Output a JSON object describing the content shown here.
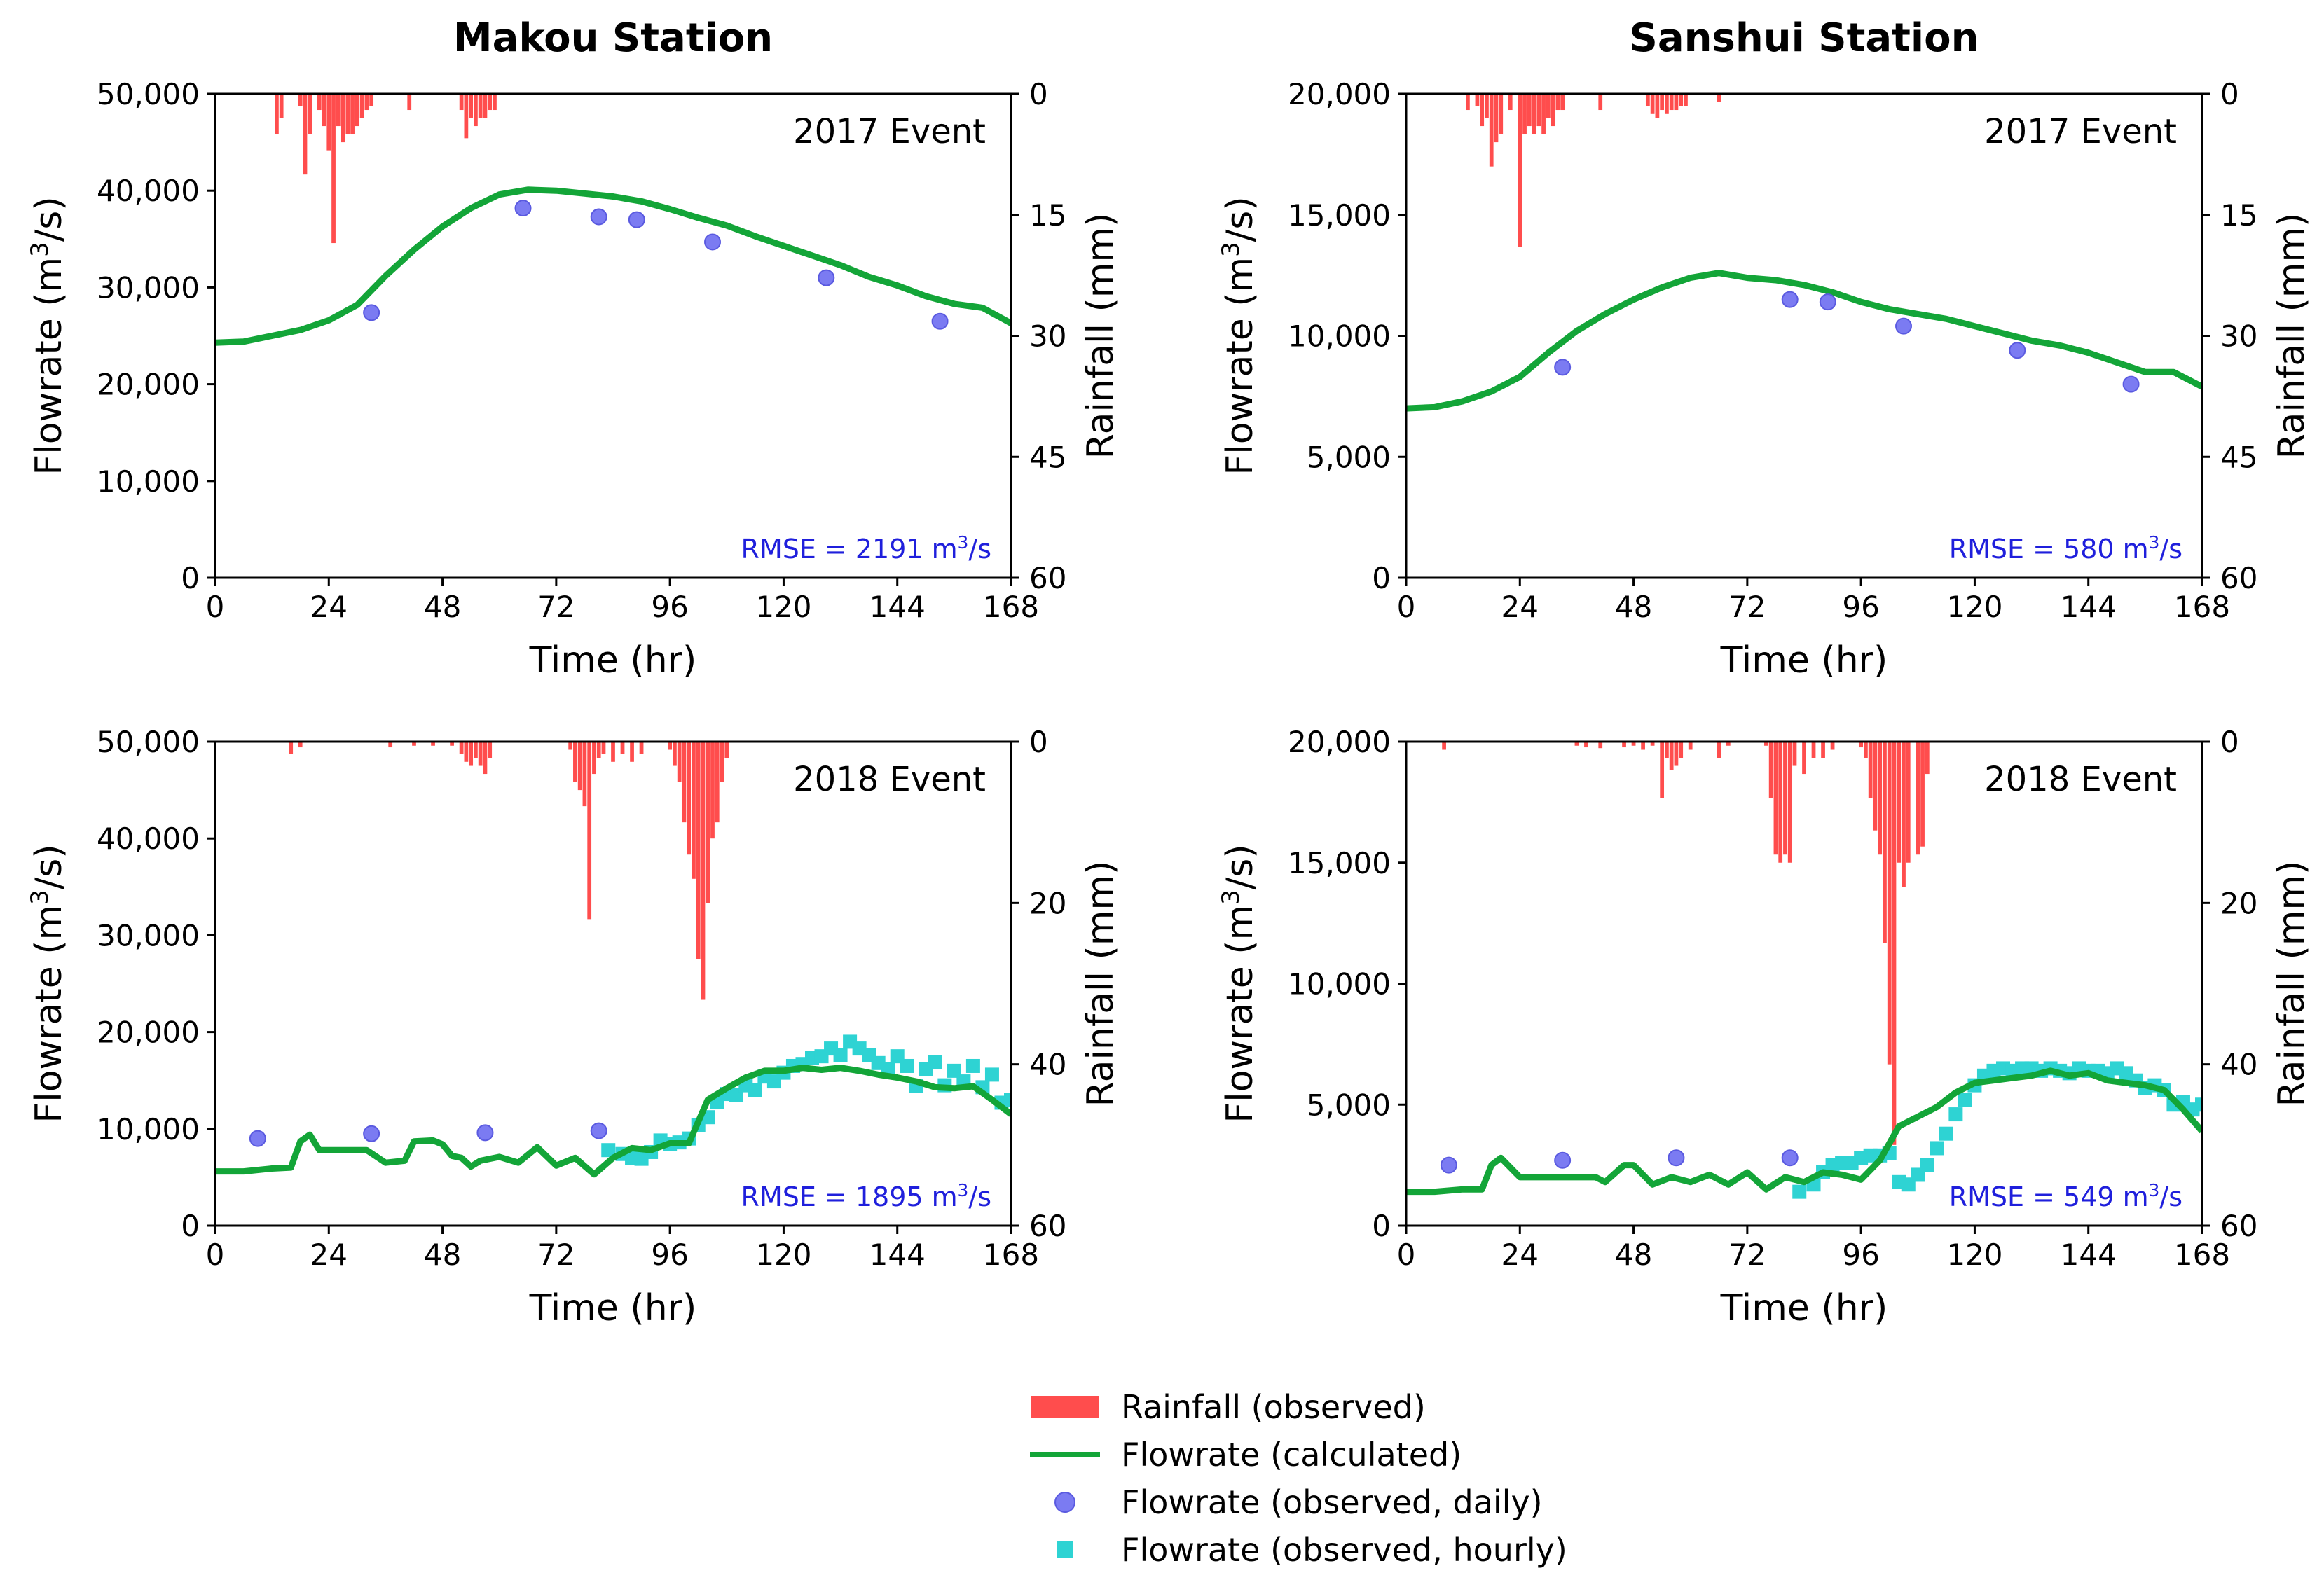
{
  "titles": {
    "left": "Makou Station",
    "right": "Sanshui Station"
  },
  "colors": {
    "rain": "#ff4d4d",
    "flow_calc": "#13a538",
    "daily": "#7b7bf2",
    "daily_edge": "#5a5ae0",
    "hourly": "#2ed3d3",
    "rmse": "#1f1fdc"
  },
  "legend": [
    {
      "label": "Rainfall (observed)",
      "marker": "bar",
      "color": "#ff4d4d"
    },
    {
      "label": "Flowrate (calculated)",
      "marker": "line",
      "color": "#13a538"
    },
    {
      "label": "Flowrate (observed, daily)",
      "marker": "circle",
      "color": "#7b7bf2"
    },
    {
      "label": "Flowrate (observed, hourly)",
      "marker": "square",
      "color": "#2ed3d3"
    }
  ],
  "chart_data": [
    {
      "id": "makou-2017",
      "type": "line",
      "event": "2017 Event",
      "rmse": "RMSE = 2191 m³/s",
      "xlabel": "Time (hr)",
      "ylabel": "Flowrate (m³/s)",
      "y2label": "Rainfall (mm)",
      "xlim": [
        0,
        168
      ],
      "ylim": [
        0,
        50000
      ],
      "y2lim": [
        0,
        60
      ],
      "xticks": [
        0,
        24,
        48,
        72,
        96,
        120,
        144,
        168
      ],
      "yticks": [
        0,
        10000,
        20000,
        30000,
        40000,
        50000
      ],
      "yticklabels": [
        "0",
        "10,000",
        "20,000",
        "30,000",
        "40,000",
        "50,000"
      ],
      "y2ticks": [
        0,
        15,
        30,
        45,
        60
      ],
      "calculated": {
        "x": [
          0,
          6,
          12,
          18,
          24,
          30,
          36,
          42,
          48,
          54,
          60,
          66,
          72,
          78,
          84,
          90,
          96,
          102,
          108,
          114,
          120,
          126,
          132,
          138,
          144,
          150,
          156,
          162,
          168
        ],
        "y": [
          24300,
          24400,
          25000,
          25600,
          26600,
          28200,
          31200,
          33900,
          36300,
          38200,
          39600,
          40100,
          40000,
          39700,
          39400,
          38900,
          38100,
          37200,
          36400,
          35300,
          34300,
          33300,
          32300,
          31100,
          30200,
          29100,
          28300,
          27900,
          26300
        ]
      },
      "daily": {
        "x": [
          33,
          65,
          81,
          89,
          105,
          129,
          153
        ],
        "y": [
          27400,
          38200,
          37300,
          37000,
          34700,
          31000,
          26500
        ]
      },
      "hourly": {
        "x": [],
        "y": []
      },
      "rain": {
        "x": [
          13,
          14,
          18,
          19,
          20,
          22,
          23,
          24,
          25,
          26,
          27,
          28,
          29,
          30,
          31,
          32,
          33,
          41,
          52,
          53,
          54,
          55,
          56,
          57,
          58,
          59
        ],
        "y": [
          5,
          3,
          1.5,
          10,
          5,
          2,
          4,
          7,
          18.5,
          4,
          6,
          5,
          5,
          4,
          3,
          2,
          1.5,
          2,
          2,
          5.5,
          3,
          4,
          3,
          3,
          2,
          2
        ]
      }
    },
    {
      "id": "sanshui-2017",
      "type": "line",
      "event": "2017 Event",
      "rmse": "RMSE = 580 m³/s",
      "xlabel": "Time (hr)",
      "ylabel": "Flowrate (m³/s)",
      "y2label": "Rainfall (mm)",
      "xlim": [
        0,
        168
      ],
      "ylim": [
        0,
        20000
      ],
      "y2lim": [
        0,
        60
      ],
      "xticks": [
        0,
        24,
        48,
        72,
        96,
        120,
        144,
        168
      ],
      "yticks": [
        0,
        5000,
        10000,
        15000,
        20000
      ],
      "yticklabels": [
        "0",
        "5,000",
        "10,000",
        "15,000",
        "20,000"
      ],
      "y2ticks": [
        0,
        15,
        30,
        45,
        60
      ],
      "calculated": {
        "x": [
          0,
          6,
          12,
          18,
          24,
          30,
          36,
          42,
          48,
          54,
          60,
          66,
          72,
          78,
          84,
          90,
          96,
          102,
          108,
          114,
          120,
          126,
          132,
          138,
          144,
          150,
          156,
          162,
          168
        ],
        "y": [
          7000,
          7050,
          7300,
          7700,
          8300,
          9300,
          10200,
          10900,
          11500,
          12000,
          12400,
          12600,
          12400,
          12300,
          12100,
          11800,
          11400,
          11100,
          10900,
          10700,
          10400,
          10100,
          9800,
          9600,
          9300,
          8900,
          8500,
          8500,
          7900
        ]
      },
      "daily": {
        "x": [
          33,
          81,
          89,
          105,
          129,
          153
        ],
        "y": [
          8700,
          11500,
          11400,
          10400,
          9400,
          8000
        ]
      },
      "hourly": {
        "x": [],
        "y": []
      },
      "rain": {
        "x": [
          13,
          15,
          16,
          17,
          18,
          19,
          20,
          22,
          24,
          25,
          26,
          27,
          28,
          29,
          30,
          31,
          32,
          33,
          41,
          51,
          52,
          53,
          54,
          55,
          56,
          57,
          58,
          59,
          66
        ],
        "y": [
          2,
          1.5,
          4,
          3,
          9,
          6,
          5,
          2,
          19,
          5,
          4,
          5,
          4,
          5,
          3,
          4,
          2,
          2,
          2,
          1.5,
          2.5,
          3,
          2,
          2.5,
          2,
          2,
          1.5,
          1.5,
          1
        ]
      }
    },
    {
      "id": "makou-2018",
      "type": "line",
      "event": "2018 Event",
      "rmse": "RMSE = 1895 m³/s",
      "xlabel": "Time (hr)",
      "ylabel": "Flowrate (m³/s)",
      "y2label": "Rainfall (mm)",
      "xlim": [
        0,
        168
      ],
      "ylim": [
        0,
        50000
      ],
      "y2lim": [
        0,
        60
      ],
      "xticks": [
        0,
        24,
        48,
        72,
        96,
        120,
        144,
        168
      ],
      "yticks": [
        0,
        10000,
        20000,
        30000,
        40000,
        50000
      ],
      "yticklabels": [
        "0",
        "10,000",
        "20,000",
        "30,000",
        "40,000",
        "50,000"
      ],
      "y2ticks": [
        0,
        20,
        40,
        60
      ],
      "calculated": {
        "x": [
          0,
          6,
          12,
          16,
          18,
          20,
          22,
          30,
          32,
          36,
          40,
          42,
          46,
          48,
          50,
          52,
          54,
          56,
          60,
          64,
          68,
          72,
          76,
          80,
          84,
          88,
          92,
          96,
          100,
          104,
          108,
          112,
          116,
          120,
          124,
          128,
          132,
          136,
          140,
          144,
          148,
          152,
          156,
          160,
          164,
          168
        ],
        "y": [
          5600,
          5600,
          5900,
          6000,
          8700,
          9400,
          7800,
          7800,
          7800,
          6500,
          6700,
          8700,
          8800,
          8400,
          7200,
          7000,
          6100,
          6700,
          7100,
          6500,
          8100,
          6200,
          7000,
          5300,
          7000,
          8000,
          7800,
          8500,
          8500,
          13000,
          14200,
          15300,
          16000,
          16000,
          16300,
          16100,
          16300,
          16000,
          15600,
          15300,
          14900,
          14300,
          14200,
          14400,
          13000,
          11500
        ]
      },
      "daily": {
        "x": [
          9,
          33,
          57,
          81
        ],
        "y": [
          9000,
          9500,
          9600,
          9800
        ]
      },
      "hourly": {
        "x": [
          83,
          86,
          88,
          90,
          92,
          94,
          96,
          98,
          100,
          102,
          104,
          106,
          108,
          110,
          112,
          114,
          116,
          118,
          120,
          122,
          124,
          126,
          128,
          130,
          132,
          134,
          136,
          138,
          140,
          142,
          144,
          146,
          148,
          150,
          152,
          154,
          156,
          158,
          160,
          162,
          164,
          166,
          168
        ],
        "y": [
          7800,
          7400,
          7000,
          6900,
          7600,
          8800,
          8400,
          8600,
          9000,
          10400,
          11200,
          12800,
          13600,
          13500,
          14500,
          14000,
          15400,
          14900,
          15800,
          16500,
          16700,
          17300,
          17500,
          18300,
          17600,
          19000,
          18300,
          17600,
          16800,
          16200,
          17500,
          16500,
          14400,
          16200,
          16900,
          14500,
          16000,
          14900,
          16500,
          14300,
          15600,
          12700,
          13000
        ]
      },
      "rain": {
        "x": [
          16,
          18,
          37,
          42,
          46,
          50,
          52,
          53,
          54,
          55,
          56,
          57,
          58,
          75,
          76,
          77,
          78,
          79,
          80,
          81,
          82,
          84,
          86,
          88,
          90,
          96,
          97,
          98,
          99,
          100,
          101,
          102,
          103,
          104,
          105,
          106,
          107,
          108
        ],
        "y": [
          1.5,
          0.7,
          0.7,
          0.5,
          0.5,
          0.5,
          1.5,
          2.5,
          3,
          2,
          3,
          4,
          2,
          1,
          5,
          6,
          8,
          22,
          4,
          2,
          1.5,
          2.5,
          1.5,
          2.5,
          1.5,
          1,
          3,
          5,
          10,
          14,
          17,
          27,
          32,
          20,
          12,
          10,
          5,
          2
        ]
      }
    },
    {
      "id": "sanshui-2018",
      "type": "line",
      "event": "2018 Event",
      "rmse": "RMSE = 549 m³/s",
      "xlabel": "Time (hr)",
      "ylabel": "Flowrate (m³/s)",
      "y2label": "Rainfall (mm)",
      "xlim": [
        0,
        168
      ],
      "ylim": [
        0,
        20000
      ],
      "y2lim": [
        0,
        60
      ],
      "xticks": [
        0,
        24,
        48,
        72,
        96,
        120,
        144,
        168
      ],
      "yticks": [
        0,
        5000,
        10000,
        15000,
        20000
      ],
      "yticklabels": [
        "0",
        "5,000",
        "10,000",
        "15,000",
        "20,000"
      ],
      "y2ticks": [
        0,
        20,
        40,
        60
      ],
      "calculated": {
        "x": [
          0,
          6,
          12,
          16,
          18,
          20,
          24,
          30,
          36,
          40,
          42,
          46,
          48,
          50,
          52,
          56,
          60,
          64,
          68,
          72,
          76,
          80,
          84,
          88,
          92,
          96,
          100,
          104,
          108,
          112,
          116,
          120,
          124,
          128,
          132,
          136,
          140,
          144,
          148,
          152,
          156,
          160,
          164,
          168
        ],
        "y": [
          1400,
          1400,
          1500,
          1500,
          2500,
          2800,
          2000,
          2000,
          2000,
          2000,
          1800,
          2500,
          2500,
          2100,
          1700,
          2000,
          1800,
          2100,
          1700,
          2200,
          1500,
          2000,
          1800,
          2200,
          2100,
          1900,
          2700,
          4100,
          4500,
          4900,
          5500,
          5900,
          6000,
          6100,
          6200,
          6400,
          6200,
          6300,
          6000,
          5900,
          5800,
          5600,
          4800,
          3900
        ]
      },
      "daily": {
        "x": [
          9,
          33,
          57,
          81
        ],
        "y": [
          2500,
          2700,
          2800,
          2800
        ]
      },
      "hourly": {
        "x": [
          83,
          86,
          88,
          90,
          92,
          94,
          96,
          98,
          100,
          102,
          104,
          106,
          108,
          110,
          112,
          114,
          116,
          118,
          120,
          122,
          124,
          126,
          128,
          130,
          132,
          134,
          136,
          138,
          140,
          142,
          144,
          146,
          148,
          150,
          152,
          154,
          156,
          158,
          160,
          162,
          164,
          166,
          168
        ],
        "y": [
          1400,
          1700,
          2200,
          2500,
          2600,
          2600,
          2800,
          2900,
          2900,
          3000,
          1800,
          1700,
          2100,
          2500,
          3200,
          3800,
          4600,
          5200,
          5800,
          6200,
          6400,
          6500,
          6400,
          6500,
          6500,
          6400,
          6500,
          6400,
          6300,
          6500,
          6400,
          6400,
          6300,
          6500,
          6300,
          6000,
          5700,
          5800,
          5600,
          5000,
          5100,
          4800,
          5000
        ]
      },
      "rain": {
        "x": [
          8,
          36,
          38,
          41,
          46,
          48,
          50,
          52,
          54,
          55,
          56,
          57,
          58,
          60,
          66,
          68,
          76,
          77,
          78,
          79,
          80,
          81,
          82,
          84,
          86,
          88,
          90,
          96,
          97,
          98,
          99,
          100,
          101,
          102,
          103,
          104,
          105,
          106,
          108,
          109,
          110
        ],
        "y": [
          1,
          0.5,
          0.7,
          0.8,
          0.7,
          0.5,
          1,
          0.5,
          7,
          2,
          3.5,
          3,
          2,
          1,
          2,
          0.5,
          0.5,
          7,
          14,
          15,
          14,
          15,
          3,
          4,
          2,
          2,
          1,
          0.7,
          2,
          7,
          11,
          14,
          25,
          40,
          50,
          15,
          18,
          15,
          14,
          13,
          4
        ]
      }
    }
  ]
}
